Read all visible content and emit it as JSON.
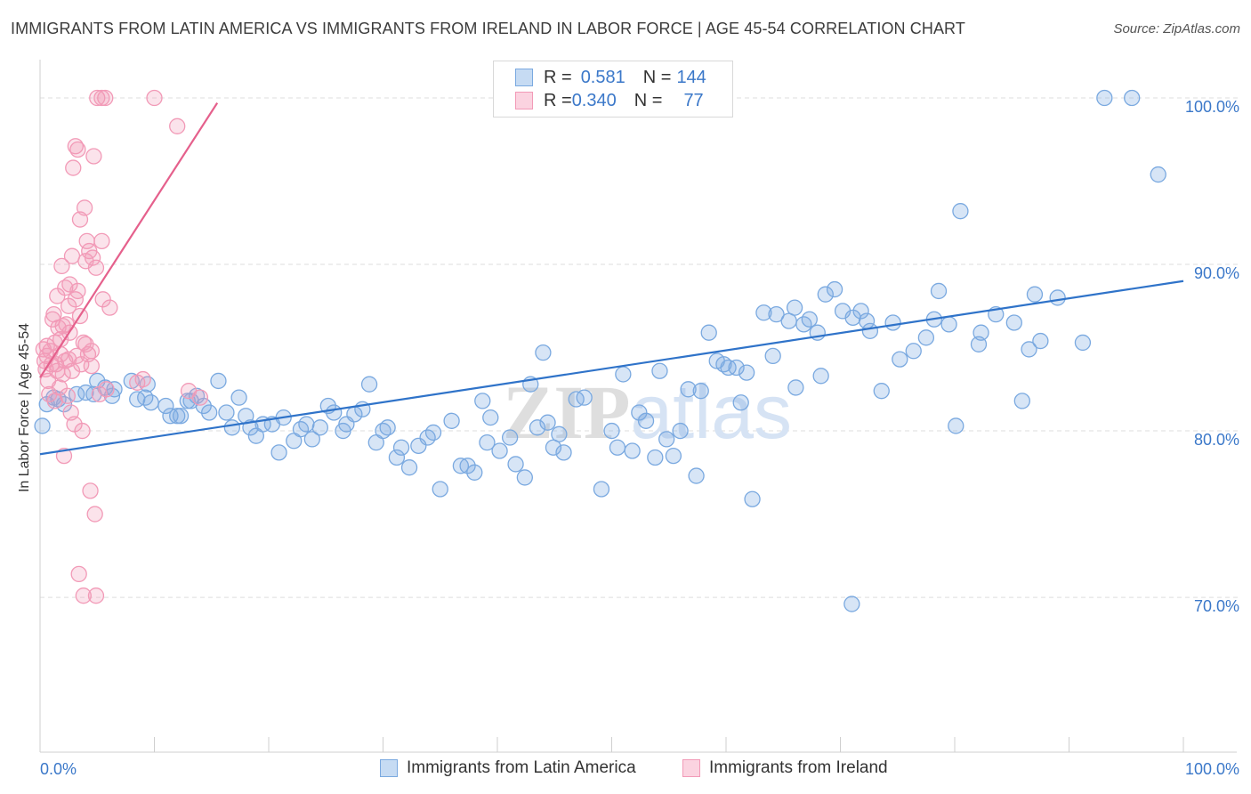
{
  "title": "IMMIGRANTS FROM LATIN AMERICA VS IMMIGRANTS FROM IRELAND IN LABOR FORCE | AGE 45-54 CORRELATION CHART",
  "source": "Source: ZipAtlas.com",
  "watermark": "ZIPatlas",
  "legend_top": {
    "rows": [
      {
        "r_label": "R = ",
        "r_value": "0.581",
        "n_label": "N = ",
        "n_value": "144",
        "color": "#7aa9e0"
      },
      {
        "r_label": "R = ",
        "r_value": "0.340",
        "n_label": "N = ",
        "n_value": "77",
        "color": "#f29ab7"
      }
    ]
  },
  "legend_bottom": [
    {
      "label": "Immigrants from Latin America",
      "color": "#7aa9e0"
    },
    {
      "label": "Immigrants from Ireland",
      "color": "#f29ab7"
    }
  ],
  "chart_data": {
    "type": "scatter",
    "title": "IMMIGRANTS FROM LATIN AMERICA VS IMMIGRANTS FROM IRELAND IN LABOR FORCE | AGE 45-54 CORRELATION CHART",
    "xlabel": "",
    "ylabel": "In Labor Force | Age 45-54",
    "xlim": [
      0,
      100
    ],
    "ylim": [
      60.7,
      102.3
    ],
    "x_tick_labels": [
      "0.0%",
      "100.0%"
    ],
    "y_ticks": [
      70,
      80,
      90,
      100
    ],
    "y_tick_labels": [
      "70.0%",
      "80.0%",
      "90.0%",
      "100.0%"
    ],
    "grid": true,
    "legend": "top-center",
    "series": [
      {
        "name": "Immigrants from Latin America",
        "color": "#7aa9e0",
        "line_color": "#2f73c9",
        "trend": {
          "x": [
            0,
            100
          ],
          "y": [
            78.6,
            89.0
          ]
        },
        "points": [
          [
            0.2,
            80.3
          ],
          [
            0.6,
            81.6
          ],
          [
            1.2,
            82.0
          ],
          [
            1.6,
            81.9
          ],
          [
            2.1,
            81.6
          ],
          [
            3.2,
            82.2
          ],
          [
            4.0,
            82.3
          ],
          [
            4.7,
            82.2
          ],
          [
            5.0,
            83.0
          ],
          [
            5.7,
            82.6
          ],
          [
            6.3,
            82.1
          ],
          [
            6.5,
            82.5
          ],
          [
            8.0,
            83.0
          ],
          [
            8.5,
            81.9
          ],
          [
            9.2,
            82.0
          ],
          [
            9.4,
            82.8
          ],
          [
            9.7,
            81.7
          ],
          [
            11.0,
            81.5
          ],
          [
            11.4,
            80.9
          ],
          [
            12.0,
            80.9
          ],
          [
            12.3,
            80.9
          ],
          [
            12.9,
            81.8
          ],
          [
            13.2,
            81.8
          ],
          [
            13.7,
            82.1
          ],
          [
            14.3,
            81.5
          ],
          [
            14.8,
            81.1
          ],
          [
            15.6,
            83.0
          ],
          [
            16.3,
            81.1
          ],
          [
            16.8,
            80.2
          ],
          [
            17.4,
            82.0
          ],
          [
            18.0,
            80.9
          ],
          [
            18.4,
            80.2
          ],
          [
            18.9,
            79.7
          ],
          [
            19.5,
            80.4
          ],
          [
            20.3,
            80.4
          ],
          [
            20.9,
            78.7
          ],
          [
            21.3,
            80.8
          ],
          [
            22.2,
            79.4
          ],
          [
            22.8,
            80.1
          ],
          [
            23.3,
            80.4
          ],
          [
            23.8,
            79.5
          ],
          [
            24.5,
            80.2
          ],
          [
            25.2,
            81.5
          ],
          [
            25.7,
            81.1
          ],
          [
            26.5,
            80.0
          ],
          [
            26.8,
            80.4
          ],
          [
            27.5,
            81.0
          ],
          [
            28.2,
            81.3
          ],
          [
            28.8,
            82.8
          ],
          [
            29.4,
            79.3
          ],
          [
            30.0,
            80.0
          ],
          [
            30.4,
            80.2
          ],
          [
            31.2,
            78.4
          ],
          [
            31.6,
            79.0
          ],
          [
            32.3,
            77.8
          ],
          [
            33.1,
            79.1
          ],
          [
            33.9,
            79.6
          ],
          [
            34.4,
            79.9
          ],
          [
            35.0,
            76.5
          ],
          [
            36.0,
            80.6
          ],
          [
            36.8,
            77.9
          ],
          [
            37.4,
            77.9
          ],
          [
            38.0,
            77.5
          ],
          [
            38.7,
            81.8
          ],
          [
            39.1,
            79.3
          ],
          [
            39.4,
            80.8
          ],
          [
            40.2,
            78.8
          ],
          [
            41.1,
            79.6
          ],
          [
            41.6,
            78.0
          ],
          [
            42.4,
            77.2
          ],
          [
            42.9,
            82.8
          ],
          [
            43.5,
            80.2
          ],
          [
            44.0,
            84.7
          ],
          [
            44.4,
            80.5
          ],
          [
            44.9,
            79.0
          ],
          [
            45.4,
            79.8
          ],
          [
            45.8,
            78.7
          ],
          [
            46.9,
            81.9
          ],
          [
            47.6,
            82.0
          ],
          [
            49.1,
            76.5
          ],
          [
            50.0,
            80.0
          ],
          [
            50.5,
            79.0
          ],
          [
            51.0,
            83.4
          ],
          [
            51.8,
            78.8
          ],
          [
            52.4,
            81.1
          ],
          [
            53.0,
            80.6
          ],
          [
            53.8,
            78.4
          ],
          [
            54.2,
            83.6
          ],
          [
            54.8,
            79.5
          ],
          [
            55.4,
            78.5
          ],
          [
            56.0,
            80.0
          ],
          [
            56.7,
            82.5
          ],
          [
            57.4,
            77.3
          ],
          [
            57.8,
            82.4
          ],
          [
            58.5,
            85.9
          ],
          [
            59.2,
            84.2
          ],
          [
            59.8,
            84.0
          ],
          [
            60.2,
            83.8
          ],
          [
            60.9,
            83.8
          ],
          [
            61.3,
            81.7
          ],
          [
            61.8,
            83.5
          ],
          [
            62.3,
            75.9
          ],
          [
            63.3,
            87.1
          ],
          [
            64.1,
            84.5
          ],
          [
            64.4,
            87.0
          ],
          [
            65.5,
            86.6
          ],
          [
            66.0,
            87.4
          ],
          [
            66.1,
            82.6
          ],
          [
            66.8,
            86.4
          ],
          [
            67.3,
            86.7
          ],
          [
            68.0,
            85.9
          ],
          [
            68.3,
            83.3
          ],
          [
            68.7,
            88.2
          ],
          [
            69.5,
            88.5
          ],
          [
            70.2,
            87.2
          ],
          [
            71.0,
            69.6
          ],
          [
            71.1,
            86.8
          ],
          [
            71.8,
            87.2
          ],
          [
            72.3,
            86.6
          ],
          [
            72.6,
            86.0
          ],
          [
            73.6,
            82.4
          ],
          [
            74.6,
            86.5
          ],
          [
            75.2,
            84.3
          ],
          [
            76.4,
            84.8
          ],
          [
            77.5,
            85.6
          ],
          [
            78.2,
            86.7
          ],
          [
            78.6,
            88.4
          ],
          [
            79.5,
            86.4
          ],
          [
            80.1,
            80.3
          ],
          [
            80.5,
            93.2
          ],
          [
            82.1,
            85.2
          ],
          [
            82.3,
            85.9
          ],
          [
            83.6,
            87.0
          ],
          [
            85.2,
            86.5
          ],
          [
            85.9,
            81.8
          ],
          [
            86.5,
            84.9
          ],
          [
            87.0,
            88.2
          ],
          [
            87.5,
            85.4
          ],
          [
            89.0,
            88.0
          ],
          [
            91.2,
            85.3
          ],
          [
            93.1,
            100.0
          ],
          [
            95.5,
            100.0
          ],
          [
            97.8,
            95.4
          ]
        ]
      },
      {
        "name": "Immigrants from Ireland",
        "color": "#f29ab7",
        "line_color": "#e5608c",
        "trend": {
          "x": [
            0,
            15.5
          ],
          "y": [
            83.2,
            99.7
          ]
        },
        "points": [
          [
            0.3,
            84.9
          ],
          [
            0.4,
            84.2
          ],
          [
            0.5,
            83.7
          ],
          [
            0.6,
            85.1
          ],
          [
            0.6,
            84.5
          ],
          [
            0.7,
            83.0
          ],
          [
            0.8,
            82.2
          ],
          [
            0.9,
            84.8
          ],
          [
            1.0,
            84.0
          ],
          [
            1.1,
            86.7
          ],
          [
            1.2,
            87.0
          ],
          [
            1.3,
            81.8
          ],
          [
            1.3,
            85.3
          ],
          [
            1.4,
            84.0
          ],
          [
            1.5,
            83.6
          ],
          [
            1.5,
            88.1
          ],
          [
            1.6,
            86.2
          ],
          [
            1.7,
            82.6
          ],
          [
            1.8,
            84.6
          ],
          [
            1.8,
            85.5
          ],
          [
            1.9,
            89.9
          ],
          [
            2.0,
            83.4
          ],
          [
            2.0,
            86.3
          ],
          [
            2.1,
            78.5
          ],
          [
            2.2,
            84.2
          ],
          [
            2.2,
            88.6
          ],
          [
            2.3,
            86.4
          ],
          [
            2.4,
            82.1
          ],
          [
            2.5,
            84.3
          ],
          [
            2.5,
            87.5
          ],
          [
            2.6,
            85.9
          ],
          [
            2.6,
            88.8
          ],
          [
            2.7,
            81.1
          ],
          [
            2.8,
            83.6
          ],
          [
            2.8,
            90.5
          ],
          [
            2.9,
            95.8
          ],
          [
            3.0,
            80.4
          ],
          [
            3.1,
            97.1
          ],
          [
            3.1,
            87.9
          ],
          [
            3.2,
            84.5
          ],
          [
            3.3,
            96.9
          ],
          [
            3.3,
            88.4
          ],
          [
            3.4,
            71.4
          ],
          [
            3.5,
            92.7
          ],
          [
            3.5,
            86.9
          ],
          [
            3.6,
            84.0
          ],
          [
            3.7,
            80.0
          ],
          [
            3.8,
            70.1
          ],
          [
            3.8,
            85.3
          ],
          [
            3.9,
            93.4
          ],
          [
            4.0,
            90.2
          ],
          [
            4.0,
            85.2
          ],
          [
            4.1,
            91.4
          ],
          [
            4.2,
            84.6
          ],
          [
            4.3,
            90.8
          ],
          [
            4.4,
            76.4
          ],
          [
            4.5,
            84.8
          ],
          [
            4.5,
            83.9
          ],
          [
            4.6,
            90.4
          ],
          [
            4.7,
            96.5
          ],
          [
            4.8,
            75.0
          ],
          [
            4.9,
            89.8
          ],
          [
            4.9,
            70.1
          ],
          [
            5.0,
            100.0
          ],
          [
            5.2,
            82.2
          ],
          [
            5.4,
            91.4
          ],
          [
            5.4,
            100.0
          ],
          [
            5.5,
            87.9
          ],
          [
            5.7,
            100.0
          ],
          [
            5.8,
            82.5
          ],
          [
            6.1,
            87.4
          ],
          [
            8.5,
            82.9
          ],
          [
            9.0,
            83.1
          ],
          [
            10.0,
            100.0
          ],
          [
            12.0,
            98.3
          ],
          [
            13.0,
            82.4
          ],
          [
            14.0,
            82.0
          ]
        ]
      }
    ]
  }
}
